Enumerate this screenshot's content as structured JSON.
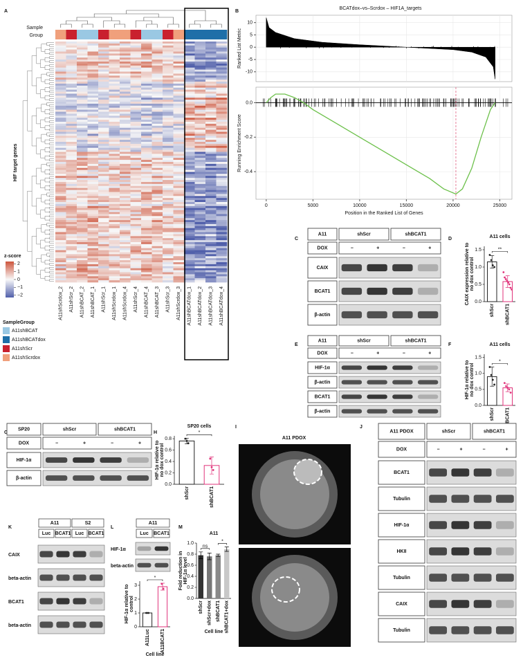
{
  "panels": {
    "a": {
      "letter": "A",
      "sample_label": [
        "Sample",
        "Group"
      ],
      "y_label": "HIF target genes",
      "scale_title": "z-score",
      "scale_lim": [
        -2.3,
        2.3
      ],
      "scale_ticks": [
        2,
        1,
        0,
        {
          "value": -1,
          "label": "−1"
        },
        {
          "value": -2,
          "label": "−2"
        }
      ],
      "legend_title": "SampleGroup",
      "groups": [
        {
          "name": "A11shBCAT",
          "color": "#9ac8e3"
        },
        {
          "name": "A11shBCATdox",
          "color": "#1f6fa8"
        },
        {
          "name": "A11shScr",
          "color": "#c9202e"
        },
        {
          "name": "A11shScrdox",
          "color": "#f0a07c"
        }
      ],
      "columns": [
        "A11shScrdox_2",
        "A11shScr_2",
        "A11shBCAT_2",
        "A11shBCAT_1",
        "A11shScr_1",
        "A11shScrdox_1",
        "A11shScrdox_4",
        "A11shScr_4",
        "A11shBCAT_4",
        "A11shBCAT_3",
        "A11shScr_3",
        "A11shScrdox_3",
        "A11shBCATdox_1",
        "A11shBCATdox_2",
        "A11shBCATdox_3",
        "A11shBCATdox_4"
      ]
    },
    "b": {
      "letter": "B",
      "title": "BCATdox–vs–Scrdox – HIF1A_targets",
      "y_label_top": "Ranked List Metric",
      "y_label_bottom": "Running Enrichment Score",
      "x_label": "Position in the Ranked List of Genes",
      "xlim": [
        -1100,
        26300
      ],
      "xticks": [
        0,
        5000,
        10000,
        15000,
        20000,
        25000
      ],
      "ylim_top": [
        -14,
        13
      ],
      "yticks_top": [
        10,
        5,
        0,
        -5,
        -10
      ],
      "ylim_bottom": [
        -0.56,
        0.09
      ],
      "yticks_bottom": [
        {
          "value": 0,
          "label": "0.0"
        },
        -0.2,
        -0.4
      ],
      "metric": {
        "x": [
          0,
          300,
          1000,
          3000,
          6000,
          10000,
          15000,
          20000,
          22000,
          23500,
          24300,
          24500
        ],
        "y": [
          12,
          8,
          6,
          3.5,
          2,
          1,
          0,
          -1,
          -2,
          -4,
          -8,
          -13
        ],
        "color": "#000000"
      },
      "enrichment": {
        "x": [
          0,
          500,
          1000,
          2000,
          3000,
          4000,
          5000,
          7500,
          10000,
          12500,
          15000,
          17500,
          19000,
          20300,
          21000,
          22000,
          23000,
          24000,
          24500
        ],
        "y": [
          0,
          0.03,
          0.05,
          0.05,
          0.03,
          0,
          -0.04,
          -0.12,
          -0.2,
          -0.28,
          -0.36,
          -0.44,
          -0.5,
          -0.53,
          -0.5,
          -0.38,
          -0.2,
          -0.04,
          0
        ],
        "color": "#6cc04a"
      },
      "peak_x": 20300,
      "peak_color": "#e06080"
    },
    "c": {
      "letter": "C",
      "cell_line": "A11",
      "groups": [
        "shScr",
        "shBCAT1"
      ],
      "dox_label": "DOX",
      "dox": [
        "−",
        "+",
        "−",
        "+"
      ],
      "rows": [
        "CAIX",
        "BCAT1",
        "β-actin"
      ]
    },
    "d": {
      "letter": "D",
      "title": "A11 cells",
      "y_label": [
        "CAIX expression relative to",
        "no dox control"
      ],
      "categories": [
        "shScr",
        "shBCAT1"
      ],
      "values": [
        1.15,
        0.58
      ],
      "errors": [
        0.18,
        0.17
      ],
      "points": [
        [
          1.35,
          1.2,
          1.05,
          1.0
        ],
        [
          0.85,
          0.7,
          0.65,
          0.6,
          0.55,
          0.5,
          0.4,
          0.35
        ]
      ],
      "colors": [
        "#222222",
        "#e0327a"
      ],
      "style": "outline",
      "ylim": [
        0,
        1.6
      ],
      "yticks": [
        {
          "value": 0,
          "label": "0.0"
        },
        0.5,
        {
          "value": 1,
          "label": "1.0"
        },
        1.5
      ],
      "significance": [
        "**"
      ]
    },
    "e": {
      "letter": "E",
      "cell_line": "A11",
      "groups": [
        "shScr",
        "shBCAT1"
      ],
      "dox_label": "DOX",
      "dox": [
        "−",
        "+",
        "−",
        "+"
      ],
      "rows": [
        "HIF-1α",
        "β-actin",
        "BCAT1",
        "β-actin"
      ]
    },
    "f": {
      "letter": "F",
      "title": "A11 cells",
      "y_label": [
        "HIF-1α relative to",
        "no dox control"
      ],
      "categories": [
        "shScr",
        "shBCAT1"
      ],
      "values": [
        0.9,
        0.55
      ],
      "errors": [
        0.3,
        0.12
      ],
      "points": [
        [
          1.2,
          0.95,
          0.8,
          0.65
        ],
        [
          0.7,
          0.6,
          0.55,
          0.5,
          0.4
        ]
      ],
      "colors": [
        "#222222",
        "#e0327a"
      ],
      "style": "outline",
      "ylim": [
        0,
        1.6
      ],
      "yticks": [
        {
          "value": 0,
          "label": "0.0"
        },
        0.5,
        {
          "value": 1,
          "label": "1.0"
        },
        1.5
      ],
      "significance": [
        "*"
      ]
    },
    "g": {
      "letter": "G",
      "cell_line": "SP20",
      "groups": [
        "shScr",
        "shBCAT1"
      ],
      "dox_label": "DOX",
      "dox": [
        "−",
        "+",
        "−",
        "+"
      ],
      "rows": [
        "HIF-1α",
        "β-actin"
      ]
    },
    "h": {
      "letter": "H",
      "title": "SP20 cells",
      "y_label": [
        "HIF-1α relative to",
        "no dox control"
      ],
      "categories": [
        "shScr",
        "shBCAT1"
      ],
      "values": [
        0.76,
        0.33
      ],
      "errors": [
        0.05,
        0.15
      ],
      "points": [
        [
          0.8,
          0.76,
          0.72
        ],
        [
          0.45,
          0.3,
          0.25
        ]
      ],
      "colors": [
        "#222222",
        "#e0327a"
      ],
      "style": "outline",
      "ylim": [
        0,
        0.85
      ],
      "yticks": [
        {
          "value": 0,
          "label": "0.0"
        },
        0.2,
        0.4,
        0.6,
        0.8
      ],
      "significance": [
        "*"
      ]
    },
    "i": {
      "letter": "I",
      "title": "A11 PDOX"
    },
    "j": {
      "letter": "J",
      "cell_line": "A11 PDOX",
      "groups": [
        "shScr",
        "shBCAT1"
      ],
      "dox_label": "DOX",
      "dox": [
        "−",
        "+",
        "−",
        "+"
      ],
      "rows": [
        "BCAT1",
        "Tubulin",
        "HIF-1α",
        "HKII",
        "Tubulin",
        "CAIX",
        "Tubulin"
      ]
    },
    "k": {
      "letter": "K",
      "groups": [
        "A11",
        "S2"
      ],
      "lanes": [
        "Luc",
        "BCAT1",
        "Luc",
        "BCAT1"
      ],
      "rows": [
        "CAIX",
        "beta-actin",
        "BCAT1",
        "beta-actin"
      ]
    },
    "l": {
      "letter": "L",
      "blot": {
        "groups": [
          "A11"
        ],
        "lanes": [
          "Luc",
          "BCAT1"
        ],
        "rows": [
          "HIF-1α",
          "beta-actin"
        ]
      },
      "chart": {
        "y_label": [
          "HIF-1α relative to",
          "control"
        ],
        "x_label": "Cell line",
        "categories": [
          "A11Luc",
          "A11BCAT1"
        ],
        "values": [
          1.0,
          2.9
        ],
        "errors": [
          0.03,
          0.25
        ],
        "points": [
          [
            1.0,
            1.0
          ],
          [
            3.1,
            2.75
          ]
        ],
        "colors": [
          "#222222",
          "#e0327a"
        ],
        "style": "outline",
        "ylim": [
          0,
          3.3
        ],
        "yticks": [
          0,
          1,
          2,
          3
        ],
        "significance": [
          "*"
        ]
      }
    },
    "m": {
      "letter": "M",
      "title": "A11",
      "y_label": [
        "Fold reduction in",
        "HIF-1α level"
      ],
      "x_label": "Cell line",
      "categories": [
        "shScr",
        "shScr+dox",
        "shBCAT1",
        "shBCAT1+dox"
      ],
      "values": [
        0.78,
        0.76,
        0.78,
        0.89
      ],
      "errors": [
        0.06,
        0.06,
        0.02,
        0.04
      ],
      "colors": [
        "#333333",
        "#777777",
        "#8a8a8a",
        "#c8c8c8"
      ],
      "style": "filled",
      "ylim": [
        0,
        1
      ],
      "yticks": [
        {
          "value": 0,
          "label": "0.0"
        },
        0.2,
        0.4,
        0.6,
        0.8,
        {
          "value": 1,
          "label": "1.0"
        }
      ],
      "significance": [
        "ns",
        "*"
      ]
    }
  }
}
